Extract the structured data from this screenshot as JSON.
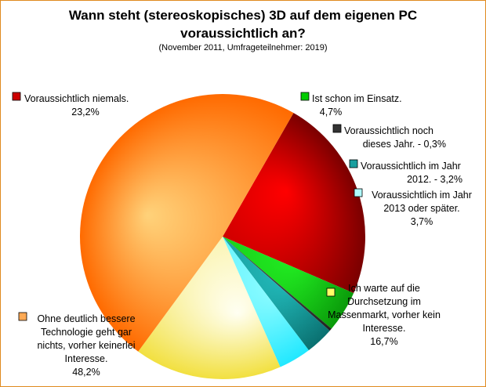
{
  "chart_data": {
    "type": "pie",
    "title_line1": "Wann steht (stereoskopisches) 3D auf dem eigenen PC",
    "title_line2": "voraussichtlich an?",
    "subtitle": "(November 2011, Umfrageteilnehmer: 2019)",
    "slices": [
      {
        "name": "Voraussichtlich niemals.",
        "value": 23.2,
        "value_label": "23,2%",
        "colors": [
          "#ff0000",
          "#7a0000"
        ],
        "label_lines": [
          "Voraussichtlich niemals.",
          "23,2%"
        ]
      },
      {
        "name": "Ist schon im Einsatz.",
        "value": 4.7,
        "value_label": "4,7%",
        "colors": [
          "#22ee22",
          "#0a9a0a"
        ],
        "label_lines": [
          "Ist schon im Einsatz.",
          "4,7%"
        ]
      },
      {
        "name": "Voraussichtlich noch dieses Jahr.",
        "value": 0.3,
        "value_label": "0,3%",
        "colors": [
          "#444444",
          "#222222"
        ],
        "label_lines": [
          "Voraussichtlich noch",
          "dieses Jahr. - 0,3%"
        ]
      },
      {
        "name": "Voraussichtlich im Jahr 2012.",
        "value": 3.2,
        "value_label": "3,2%",
        "colors": [
          "#22bcbc",
          "#0a7070"
        ],
        "label_lines": [
          "Voraussichtlich im Jahr",
          "2012. - 3,2%"
        ]
      },
      {
        "name": "Voraussichtlich im Jahr 2013 oder später.",
        "value": 3.7,
        "value_label": "3,7%",
        "colors": [
          "#8ffcff",
          "#22e8ff"
        ],
        "label_lines": [
          "Voraussichtlich im Jahr",
          "2013 oder später.",
          "3,7%"
        ]
      },
      {
        "name": "Ich warte auf die Durchsetzung im Massenmarkt, vorher kein Interesse.",
        "value": 16.7,
        "value_label": "16,7%",
        "colors": [
          "#fffff2",
          "#f2e040"
        ],
        "label_lines": [
          "Ich warte auf die",
          "Durchsetzung im",
          "Massenmarkt, vorher kein",
          "Interesse.",
          "16,7%"
        ]
      },
      {
        "name": "Ohne deutlich bessere Technologie geht gar nichts, vorher keinerlei Interesse.",
        "value": 48.2,
        "value_label": "48,2%",
        "colors": [
          "#ffd27a",
          "#ff6a00"
        ],
        "label_lines": [
          "Ohne deutlich bessere",
          "Technologie geht gar",
          "nichts, vorher keinerlei",
          "Interesse.",
          "48,2%"
        ]
      }
    ],
    "legend_markers": [
      "#cc0000",
      "#00cc00",
      "#333333",
      "#1a9f9f",
      "#b0fcff",
      "#ffff66",
      "#ffaa55"
    ]
  }
}
